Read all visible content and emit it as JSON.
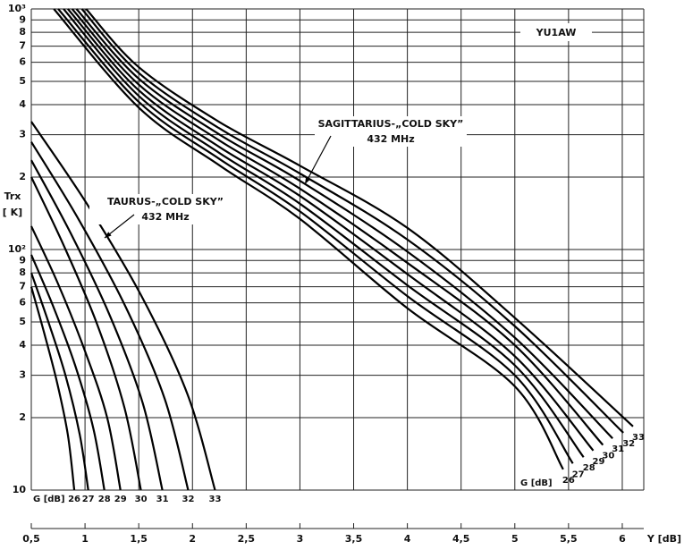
{
  "chart_data": [
    {
      "type": "line",
      "yscale": "log",
      "grid": true,
      "xlim": [
        0.5,
        6.2
      ],
      "ylim": [
        10,
        1000
      ],
      "yticks": [
        10,
        {
          "value": 20,
          "label": "2"
        },
        {
          "value": 30,
          "label": "3"
        },
        {
          "value": 40,
          "label": "4"
        },
        {
          "value": 50,
          "label": "5"
        },
        {
          "value": 60,
          "label": "6"
        },
        {
          "value": 70,
          "label": "7"
        },
        {
          "value": 80,
          "label": "8"
        },
        {
          "value": 90,
          "label": "9"
        },
        {
          "value": 100,
          "label": "10²"
        },
        {
          "value": 200,
          "label": "2"
        },
        {
          "value": 300,
          "label": "3"
        },
        {
          "value": 400,
          "label": "4"
        },
        {
          "value": 500,
          "label": "5"
        },
        {
          "value": 600,
          "label": "6"
        },
        {
          "value": 700,
          "label": "7"
        },
        {
          "value": 800,
          "label": "8"
        },
        {
          "value": 900,
          "label": "9"
        },
        {
          "value": 1000,
          "label": "10³"
        }
      ],
      "xticks": [
        {
          "value": 0.5,
          "label": "0,5"
        },
        1,
        {
          "value": 1.5,
          "label": "1,5"
        },
        2,
        {
          "value": 2.5,
          "label": "2,5"
        },
        3,
        {
          "value": 3.5,
          "label": "3,5"
        },
        4,
        {
          "value": 4.5,
          "label": "4,5"
        },
        5,
        {
          "value": 5.5,
          "label": "5,5"
        },
        6
      ],
      "y_label": [
        "Trx",
        "[ K]"
      ],
      "x_label": "Y [dB]",
      "watermark": "YU1AW",
      "annotation": [
        "TAURUS-„COLD SKY”",
        "432 MHz"
      ],
      "series_label_title": "G [dB]",
      "series": [
        {
          "name": "26",
          "color": "#000",
          "x": [
            0.5,
            0.62,
            0.74,
            0.84,
            0.9
          ],
          "values": [
            70,
            45,
            28,
            17,
            10
          ]
        },
        {
          "name": "27",
          "color": "#000",
          "x": [
            0.5,
            0.659,
            0.818,
            0.951,
            1.03
          ],
          "values": [
            80,
            50,
            30,
            17,
            10
          ]
        },
        {
          "name": "28",
          "color": "#000",
          "x": [
            0.5,
            0.704,
            0.908,
            1.078,
            1.18
          ],
          "values": [
            95,
            58,
            33,
            18,
            10
          ]
        },
        {
          "name": "29",
          "color": "#000",
          "x": [
            0.5,
            0.749,
            0.998,
            1.206,
            1.33
          ],
          "values": [
            125,
            72,
            38,
            20,
            10
          ]
        },
        {
          "name": "30",
          "color": "#000",
          "x": [
            0.5,
            0.806,
            1.112,
            1.367,
            1.52
          ],
          "values": [
            200,
            103,
            49,
            22,
            10
          ]
        },
        {
          "name": "31",
          "color": "#000",
          "x": [
            0.5,
            0.866,
            1.232,
            1.537,
            1.72
          ],
          "values": [
            235,
            117,
            53,
            23,
            10
          ]
        },
        {
          "name": "32",
          "color": "#000",
          "x": [
            0.5,
            0.938,
            1.376,
            1.741,
            1.96
          ],
          "values": [
            280,
            134,
            58,
            24,
            10
          ]
        },
        {
          "name": "33",
          "color": "#000",
          "x": [
            0.5,
            1.013,
            1.526,
            1.954,
            2.21
          ],
          "values": [
            340,
            156,
            64,
            25,
            10
          ]
        }
      ]
    },
    {
      "type": "line",
      "annotation": [
        "SAGITTARIUS-„COLD SKY”",
        "432 MHz"
      ],
      "series_label_title": "G [dB]",
      "series": [
        {
          "name": "26",
          "color": "#000",
          "x": [
            0.71,
            1.5,
            2.25,
            3,
            4,
            5,
            5.45
          ],
          "values": [
            1000,
            389,
            224,
            134,
            57,
            27,
            12.2
          ]
        },
        {
          "name": "27",
          "color": "#000",
          "x": [
            0.75,
            1.5,
            2.25,
            3,
            4,
            5,
            5.54
          ],
          "values": [
            1000,
            411,
            238,
            144,
            64,
            30,
            12.9
          ]
        },
        {
          "name": "28",
          "color": "#000",
          "x": [
            0.8,
            1.5,
            2.25,
            3,
            4,
            5,
            5.64
          ],
          "values": [
            1000,
            435,
            252,
            155,
            71,
            33,
            13.7
          ]
        },
        {
          "name": "29",
          "color": "#000",
          "x": [
            0.84,
            1.5,
            2.25,
            3,
            4,
            5,
            5.73
          ],
          "values": [
            1000,
            459,
            267,
            167,
            79,
            36,
            14.6
          ]
        },
        {
          "name": "30",
          "color": "#000",
          "x": [
            0.88,
            1.5,
            2.25,
            3,
            4,
            5,
            5.82
          ],
          "values": [
            1000,
            485,
            284,
            179,
            88,
            40,
            15.4
          ]
        },
        {
          "name": "31",
          "color": "#000",
          "x": [
            0.92,
            1.5,
            2.25,
            3,
            4,
            5,
            5.91
          ],
          "values": [
            1000,
            513,
            301,
            193,
            98,
            43,
            16.4
          ]
        },
        {
          "name": "32",
          "color": "#000",
          "x": [
            0.97,
            1.5,
            2.25,
            3,
            4,
            5,
            6.01
          ],
          "values": [
            1000,
            542,
            319,
            207,
            110,
            48,
            17.3
          ]
        },
        {
          "name": "33",
          "color": "#000",
          "x": [
            1.01,
            1.5,
            2.25,
            3,
            4,
            5,
            6.1
          ],
          "values": [
            1000,
            573,
            339,
            223,
            123,
            52,
            18.4
          ]
        }
      ]
    }
  ]
}
